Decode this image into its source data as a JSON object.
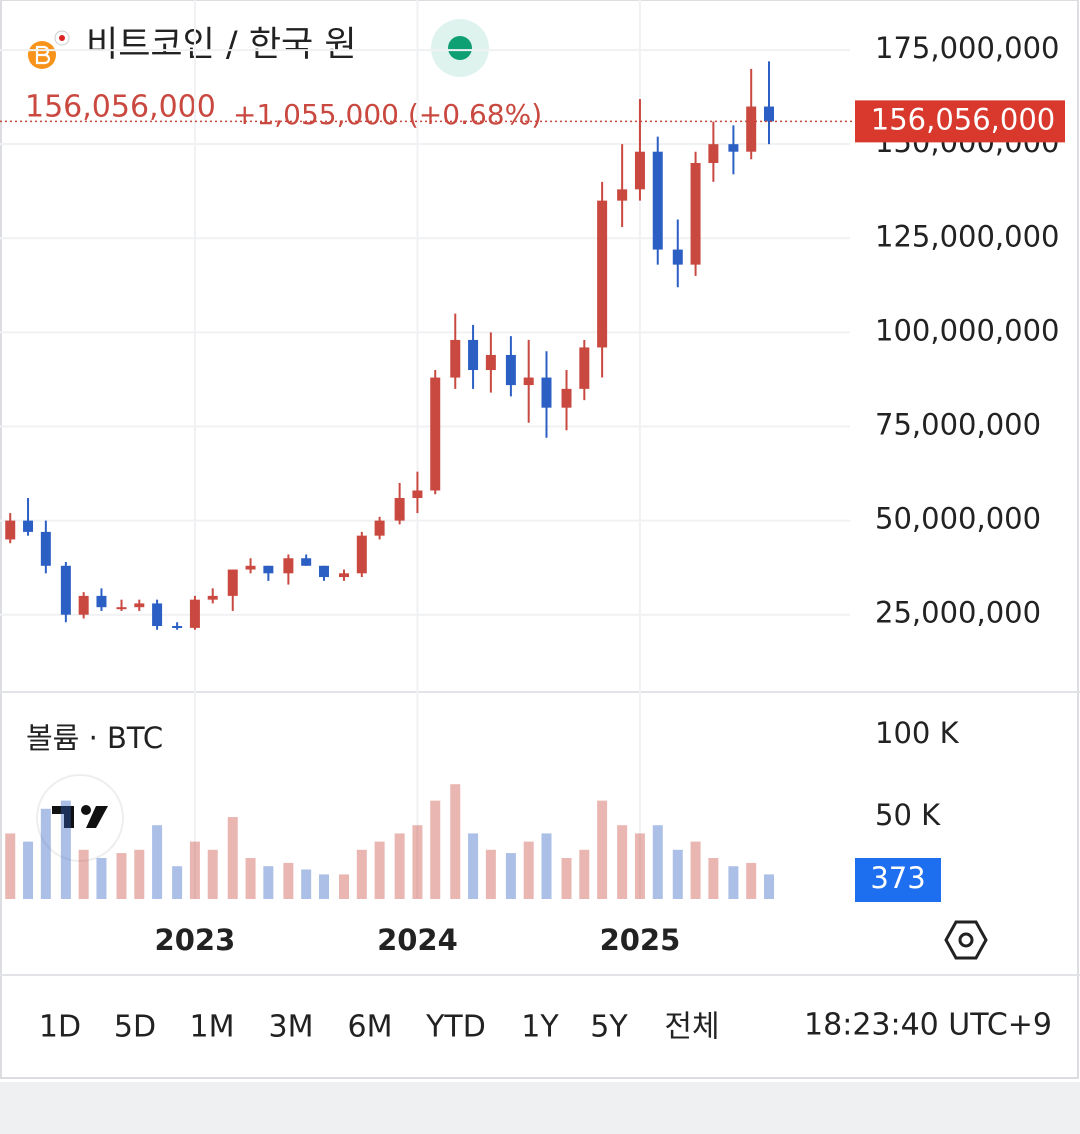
{
  "header": {
    "title": "비트코인 / 한국 원",
    "price": "156,056,000",
    "change": "+1,055,000 (+0.68%)"
  },
  "chart_data": {
    "type": "candlestick",
    "x": [
      2022.17,
      2022.25,
      2022.33,
      2022.42,
      2022.5,
      2022.58,
      2022.67,
      2022.75,
      2022.83,
      2022.92,
      2023.0,
      2023.08,
      2023.17,
      2023.25,
      2023.33,
      2023.42,
      2023.5,
      2023.58,
      2023.67,
      2023.75,
      2023.83,
      2023.92,
      2024.0,
      2024.08,
      2024.17,
      2024.25,
      2024.33,
      2024.42,
      2024.5,
      2024.58,
      2024.67,
      2024.75,
      2024.83,
      2024.92,
      2025.0,
      2025.08,
      2025.17,
      2025.25,
      2025.33,
      2025.42,
      2025.5,
      2025.58
    ],
    "open": [
      45000000,
      50000000,
      47000000,
      38000000,
      25000000,
      30000000,
      27000000,
      27000000,
      28000000,
      22000000,
      21500000,
      29000000,
      30000000,
      37000000,
      38000000,
      36000000,
      40000000,
      38000000,
      35000000,
      36000000,
      46000000,
      50000000,
      56000000,
      58000000,
      88000000,
      98000000,
      90000000,
      94000000,
      86000000,
      88000000,
      80000000,
      85000000,
      96000000,
      135000000,
      138000000,
      148000000,
      122000000,
      118000000,
      145000000,
      150000000,
      148000000,
      160000000
    ],
    "high": [
      52000000,
      56000000,
      50000000,
      39000000,
      31000000,
      32000000,
      29000000,
      29000000,
      29000000,
      23000000,
      30000000,
      32000000,
      37000000,
      40000000,
      38000000,
      41000000,
      41000000,
      38000000,
      37000000,
      47000000,
      51000000,
      60000000,
      63000000,
      90000000,
      105000000,
      102000000,
      100000000,
      99000000,
      98000000,
      95000000,
      90000000,
      98000000,
      140000000,
      150000000,
      162000000,
      152000000,
      130000000,
      148000000,
      156000000,
      155000000,
      170000000,
      172000000
    ],
    "low": [
      44000000,
      46000000,
      36000000,
      23000000,
      24000000,
      26000000,
      26000000,
      26000000,
      21000000,
      21000000,
      21000000,
      28000000,
      26000000,
      36000000,
      34000000,
      33000000,
      38000000,
      34000000,
      34000000,
      35000000,
      45000000,
      49000000,
      52000000,
      57000000,
      85000000,
      85000000,
      84000000,
      83000000,
      76000000,
      72000000,
      74000000,
      82000000,
      88000000,
      128000000,
      135000000,
      118000000,
      112000000,
      115000000,
      140000000,
      142000000,
      146000000,
      150000000
    ],
    "close": [
      50000000,
      47000000,
      38000000,
      25000000,
      30000000,
      27000000,
      27000000,
      28000000,
      22000000,
      21500000,
      29000000,
      30000000,
      37000000,
      38000000,
      36000000,
      40000000,
      38000000,
      35000000,
      36000000,
      46000000,
      50000000,
      56000000,
      58000000,
      88000000,
      98000000,
      90000000,
      94000000,
      86000000,
      88000000,
      80000000,
      85000000,
      96000000,
      135000000,
      138000000,
      148000000,
      122000000,
      118000000,
      145000000,
      150000000,
      148000000,
      160000000,
      156056000
    ],
    "volume": [
      40000,
      35000,
      55000,
      60000,
      30000,
      25000,
      28000,
      30000,
      45000,
      20000,
      35000,
      30000,
      50000,
      25000,
      20000,
      22000,
      18000,
      15000,
      15000,
      30000,
      35000,
      40000,
      45000,
      60000,
      70000,
      40000,
      30000,
      28000,
      35000,
      40000,
      25000,
      30000,
      60000,
      45000,
      40000,
      45000,
      30000,
      35000,
      25000,
      20000,
      22000,
      15000
    ],
    "xlim": [
      2022.124,
      2025.944
    ],
    "xticks": [
      2023,
      2024,
      2025
    ],
    "ylim": [
      5000000,
      188300000
    ],
    "yticks": [
      {
        "value": 25000000,
        "label": "25,000,000"
      },
      {
        "value": 50000000,
        "label": "50,000,000"
      },
      {
        "value": 75000000,
        "label": "75,000,000"
      },
      {
        "value": 100000000,
        "label": "100,000,000"
      },
      {
        "value": 125000000,
        "label": "125,000,000"
      },
      {
        "value": 150000000,
        "label": "150,000,000"
      },
      {
        "value": 175000000,
        "label": "175,000,000"
      }
    ],
    "last_price": {
      "value": 156056000,
      "label": "156,056,000"
    },
    "volume_title": "볼륨 · BTC",
    "y2lim": [
      0,
      124400
    ],
    "y2ticks": [
      {
        "value": 50000,
        "label": "50 K"
      },
      {
        "value": 100000,
        "label": "100 K"
      }
    ],
    "current_volume": 373,
    "up_color": "#c9483f",
    "down_color": "#2c5fc4",
    "grid": true
  },
  "toolbar": {
    "ranges": [
      "1D",
      "5D",
      "1M",
      "3M",
      "6M",
      "YTD",
      "1Y",
      "5Y",
      "전체"
    ],
    "time": "18:23:40 UTC+9"
  }
}
